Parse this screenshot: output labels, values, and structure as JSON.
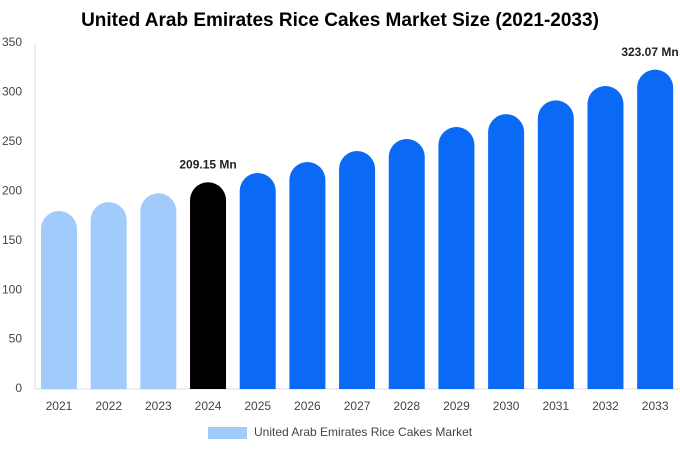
{
  "chart_data": {
    "type": "bar",
    "title": "United Arab Emirates Rice Cakes Market Size (2021-2033)",
    "categories": [
      "2021",
      "2022",
      "2023",
      "2024",
      "2025",
      "2026",
      "2027",
      "2028",
      "2029",
      "2030",
      "2031",
      "2032",
      "2033"
    ],
    "series": [
      {
        "name": "United Arab Emirates Rice Cakes Market",
        "color": "#a0cbfa",
        "colors": [
          "#a0cbfa",
          "#a0cbfa",
          "#a0cbfa",
          "#000000",
          "#0a6af5",
          "#0a6af5",
          "#0a6af5",
          "#0a6af5",
          "#0a6af5",
          "#0a6af5",
          "#0a6af5",
          "#0a6af5",
          "#0a6af5"
        ],
        "values": [
          180,
          189,
          198,
          209.15,
          218.5,
          229.6,
          240.7,
          252.9,
          265,
          278,
          292,
          306.5,
          323.07
        ],
        "value_labels": [
          null,
          null,
          null,
          "209.15 Mn",
          null,
          null,
          null,
          null,
          null,
          null,
          null,
          null,
          "323.07 Mn"
        ]
      }
    ],
    "ylim": [
      0,
      350
    ],
    "yticks": [
      0,
      50,
      100,
      150,
      200,
      250,
      300,
      350
    ],
    "grid": false
  }
}
